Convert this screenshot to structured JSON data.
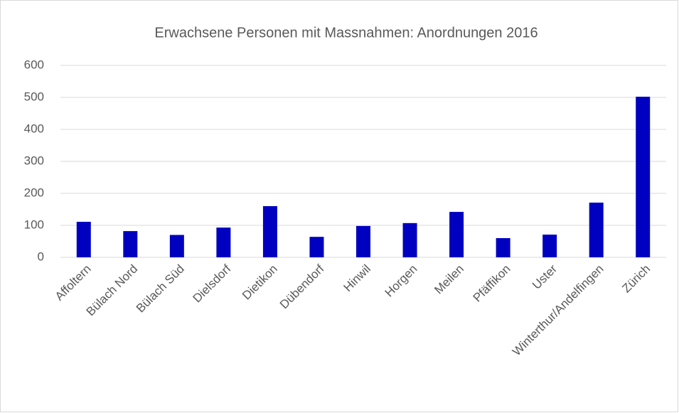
{
  "chart_data": {
    "type": "bar",
    "title": "Erwachsene Personen mit Massnahmen: Anordnungen 2016",
    "categories": [
      "Affoltern",
      "Bülach Nord",
      "Bülach Süd",
      "Dielsdorf",
      "Dietikon",
      "Dübendorf",
      "Hinwil",
      "Horgen",
      "Meilen",
      "Pfäffikon",
      "Uster",
      "Winterthur/Andelfingen",
      "Zürich"
    ],
    "values": [
      111,
      82,
      70,
      93,
      160,
      64,
      98,
      107,
      142,
      60,
      71,
      171,
      502
    ],
    "color": "#0000c0",
    "ylim": [
      0,
      600
    ],
    "yticks": [
      0,
      100,
      200,
      300,
      400,
      500,
      600
    ],
    "grid": true
  }
}
